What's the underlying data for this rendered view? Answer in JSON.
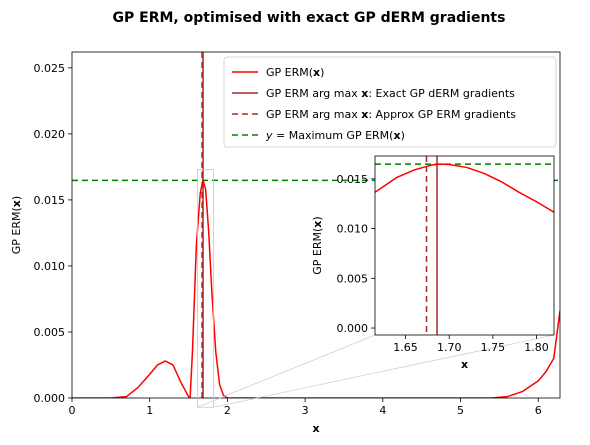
{
  "chart_data": [
    {
      "type": "line",
      "title": "GP ERM, optimised with exact GP dERM gradients",
      "xlabel": "x",
      "ylabel": "GP ERM(x)",
      "xlim": [
        0,
        6.28
      ],
      "ylim": [
        0,
        0.0262
      ],
      "xticks": [
        "0",
        "1",
        "2",
        "3",
        "4",
        "5",
        "6"
      ],
      "yticks": [
        "0.000",
        "0.005",
        "0.010",
        "0.015",
        "0.020",
        "0.025"
      ],
      "series": [
        {
          "name": "GP ERM(x)",
          "color": "#ff0000",
          "x": [
            0,
            0.5,
            0.7,
            0.85,
            1.0,
            1.1,
            1.2,
            1.3,
            1.4,
            1.5,
            1.52,
            1.55,
            1.6,
            1.65,
            1.686,
            1.72,
            1.76,
            1.8,
            1.85,
            1.9,
            1.95,
            2.0,
            2.2,
            4.0,
            5.4,
            5.6,
            5.8,
            6.0,
            6.1,
            6.2,
            6.28
          ],
          "y": [
            0,
            0,
            0.0001,
            0.0008,
            0.0018,
            0.0025,
            0.0028,
            0.0025,
            0.0012,
            0.0001,
            0.0,
            0.0035,
            0.0115,
            0.0155,
            0.0165,
            0.0158,
            0.0125,
            0.008,
            0.0035,
            0.001,
            0.0002,
            0,
            0,
            0,
            0,
            0.0001,
            0.0005,
            0.0013,
            0.002,
            0.003,
            0.0066
          ]
        }
      ],
      "vlines": [
        {
          "name": "GP ERM arg max x: Exact GP dERM gradients",
          "x": 1.686,
          "color": "#a52a2a",
          "style": "solid"
        },
        {
          "name": "GP ERM arg max x: Approx GP ERM gradients",
          "x": 1.674,
          "color": "#a52a2a",
          "style": "dashed"
        }
      ],
      "hlines": [
        {
          "name": "y = Maximum GP ERM(x)",
          "y": 0.01648,
          "color": "#008000",
          "style": "dashed"
        }
      ],
      "legend": {
        "placement": "top-right",
        "entries": [
          "GP ERM(x)",
          "GP ERM arg max x: Exact GP dERM gradients",
          "GP ERM arg max x: Approx GP ERM gradients",
          "y = Maximum GP ERM(x)"
        ]
      },
      "grid": false
    },
    {
      "type": "line",
      "role": "inset",
      "xlabel": "x",
      "ylabel": "GP ERM(x)",
      "xlim": [
        1.615,
        1.82
      ],
      "ylim": [
        -0.0007,
        0.0173
      ],
      "xticks": [
        "1.65",
        "1.70",
        "1.75",
        "1.80"
      ],
      "yticks": [
        "0.000",
        "0.005",
        "0.010",
        "0.015"
      ],
      "series": [
        {
          "name": "GP ERM(x)",
          "color": "#ff0000",
          "x": [
            1.615,
            1.64,
            1.66,
            1.68,
            1.69,
            1.7,
            1.72,
            1.74,
            1.76,
            1.78,
            1.8,
            1.82
          ],
          "y": [
            0.01365,
            0.01515,
            0.0159,
            0.0164,
            0.01648,
            0.01645,
            0.01615,
            0.01555,
            0.0147,
            0.01365,
            0.0127,
            0.01165
          ]
        }
      ],
      "vlines": [
        {
          "x": 1.686,
          "color": "#a52a2a",
          "style": "solid"
        },
        {
          "x": 1.674,
          "color": "#a52a2a",
          "style": "dashed"
        }
      ],
      "hlines": [
        {
          "y": 0.01648,
          "color": "#008000",
          "style": "dashed"
        }
      ]
    }
  ],
  "legend_parts": [
    {
      "pre": "GP ERM(",
      "bold": "x",
      "post": ")",
      "italic": false
    },
    {
      "pre": "GP ERM arg max ",
      "bold": "x",
      "post": ": Exact GP dERM gradients",
      "italic": false
    },
    {
      "pre": "GP ERM arg max ",
      "bold": "x",
      "post": ": Approx GP ERM gradients",
      "italic": false
    },
    {
      "pre": "y",
      "bold": "",
      "post": " = Maximum GP ERM(x)",
      "italic": true
    }
  ],
  "axis_text": {
    "main_xlabel": "x",
    "main_ylabel_pre": "GP ERM(",
    "main_ylabel_bold": "x",
    "main_ylabel_post": ")",
    "inset_xlabel": "x",
    "inset_ylabel_pre": "GP ERM(",
    "inset_ylabel_bold": "x",
    "inset_ylabel_post": ")"
  }
}
